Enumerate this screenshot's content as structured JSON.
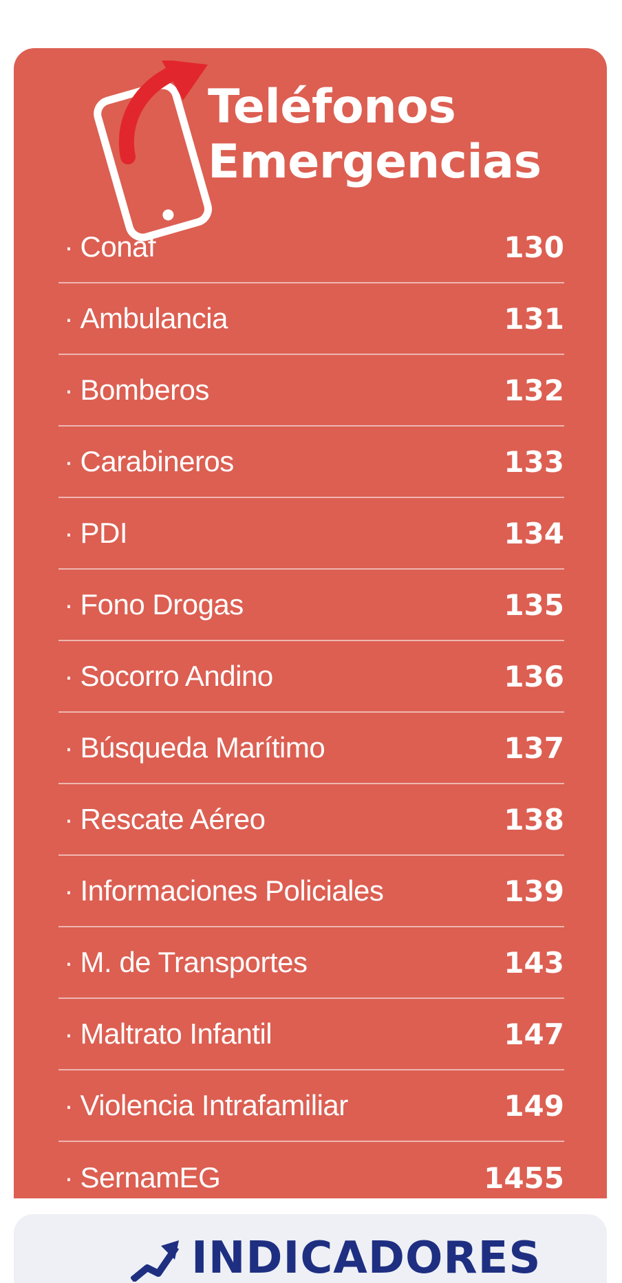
{
  "header": {
    "title_line1": "Teléfonos",
    "title_line2": "Emergencias",
    "icon": "phone-with-arrow-icon",
    "colors": {
      "panel": "#dc5f52",
      "arrow": "#e2262e",
      "text": "#ffffff"
    }
  },
  "contacts": [
    {
      "name": "Conaf",
      "number": "130"
    },
    {
      "name": "Ambulancia",
      "number": "131"
    },
    {
      "name": "Bomberos",
      "number": "132"
    },
    {
      "name": "Carabineros",
      "number": "133"
    },
    {
      "name": "PDI",
      "number": "134"
    },
    {
      "name": "Fono Drogas",
      "number": "135"
    },
    {
      "name": "Socorro Andino",
      "number": "136"
    },
    {
      "name": "Búsqueda Marítimo",
      "number": "137"
    },
    {
      "name": "Rescate Aéreo",
      "number": "138"
    },
    {
      "name": "Informaciones Policiales",
      "number": "139"
    },
    {
      "name": "M. de Transportes",
      "number": "143"
    },
    {
      "name": "Maltrato Infantil",
      "number": "147"
    },
    {
      "name": "Violencia Intrafamiliar",
      "number": "149"
    },
    {
      "name": "SernamEG",
      "number": "1455"
    }
  ],
  "banner": {
    "title": "INDICADORES",
    "icon": "trend-arrow-icon",
    "colors": {
      "background": "#eef0f5",
      "text": "#1e2f82"
    }
  }
}
